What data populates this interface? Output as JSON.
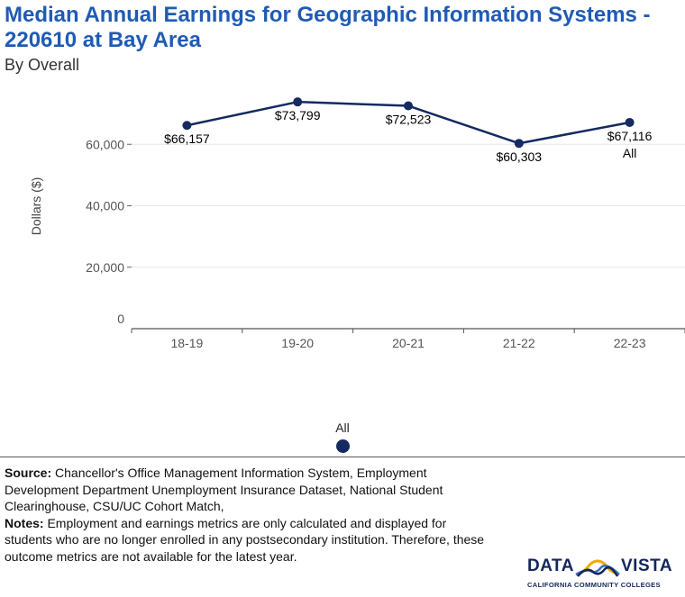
{
  "header": {
    "title": "Median Annual Earnings for Geographic Information Systems - 220610 at Bay Area",
    "subtitle": "By Overall"
  },
  "chart_data": {
    "type": "line",
    "title": "Median Annual Earnings for Geographic Information Systems - 220610 at Bay Area",
    "subtitle": "By Overall",
    "xlabel": "",
    "ylabel": "Dollars ($)",
    "categories": [
      "18-19",
      "19-20",
      "20-21",
      "21-22",
      "22-23"
    ],
    "series": [
      {
        "name": "All",
        "color": "#142a60",
        "values": [
          66157,
          73799,
          72523,
          60303,
          67116
        ],
        "labels": [
          "$66,157",
          "$73,799",
          "$72,523",
          "$60,303",
          "$67,116"
        ]
      }
    ],
    "end_label": "All",
    "ylim": [
      0,
      80000
    ],
    "yticks": [
      0,
      20000,
      40000,
      60000
    ],
    "ytick_labels": [
      "0",
      "20,000",
      "40,000",
      "60,000"
    ],
    "grid": true,
    "legend": {
      "placement": "bottom-center",
      "entries": [
        "All"
      ]
    }
  },
  "footer": {
    "source_label": "Source:",
    "source_text": " Chancellor's Office Management Information System, Employment Development Department Unemployment Insurance Dataset, National Student Clearinghouse, CSU/UC Cohort Match,",
    "notes_label": "Notes:",
    "notes_text": " Employment and earnings metrics are only calculated and displayed for students who are no longer enrolled in any postsecondary institution. Therefore, these outcome metrics are not available for the latest year."
  },
  "logo": {
    "word_left": "DATA",
    "word_right": "VISTA",
    "tagline": "CALIFORNIA COMMUNITY COLLEGES",
    "icon": "mountain-wave-icon",
    "colors": {
      "navy": "#14275a",
      "gold": "#f2a900",
      "blue": "#3a6fc4"
    }
  }
}
